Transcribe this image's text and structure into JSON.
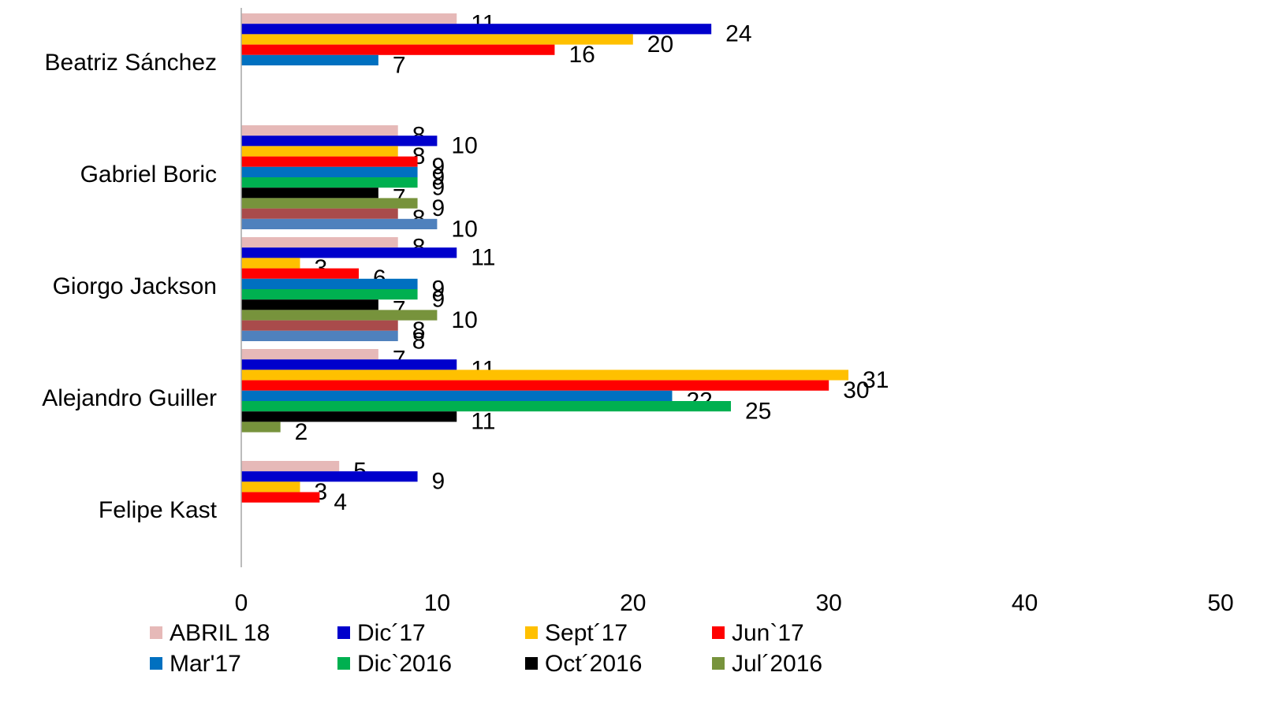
{
  "chart_data": {
    "type": "hbar",
    "categories": [
      "Beatriz Sánchez",
      "Gabriel Boric",
      "Giorgo Jackson",
      "Alejandro Guiller",
      "Felipe Kast"
    ],
    "series": [
      {
        "name": "ABRIL 18",
        "color": "#e6b9b8",
        "values": [
          11,
          8,
          8,
          7,
          5
        ]
      },
      {
        "name": "Dic´17",
        "color": "#0000cc",
        "values": [
          24,
          10,
          11,
          11,
          9
        ]
      },
      {
        "name": "Sept´17",
        "color": "#ffc000",
        "values": [
          20,
          8,
          3,
          31,
          3
        ]
      },
      {
        "name": "Jun`17",
        "color": "#ff0000",
        "values": [
          16,
          9,
          6,
          30,
          4
        ]
      },
      {
        "name": "Mar'17",
        "color": "#0070c0",
        "values": [
          7,
          9,
          9,
          22,
          null
        ]
      },
      {
        "name": "Dic`2016",
        "color": "#00b050",
        "values": [
          null,
          9,
          9,
          25,
          null
        ]
      },
      {
        "name": "Oct´2016",
        "color": "#000000",
        "values": [
          null,
          7,
          7,
          11,
          null
        ]
      },
      {
        "name": "Jul´2016",
        "color": "#77933c",
        "values": [
          null,
          9,
          10,
          2,
          null
        ]
      },
      {
        "name": null,
        "color": "#a94b4b",
        "values": [
          null,
          8,
          8,
          null,
          null
        ]
      },
      {
        "name": null,
        "color": "#4f81bd",
        "values": [
          null,
          10,
          8,
          null,
          null
        ]
      }
    ],
    "xlim": [
      0,
      50
    ],
    "xticks": [
      0,
      10,
      20,
      30,
      40,
      50
    ],
    "grid": false
  }
}
